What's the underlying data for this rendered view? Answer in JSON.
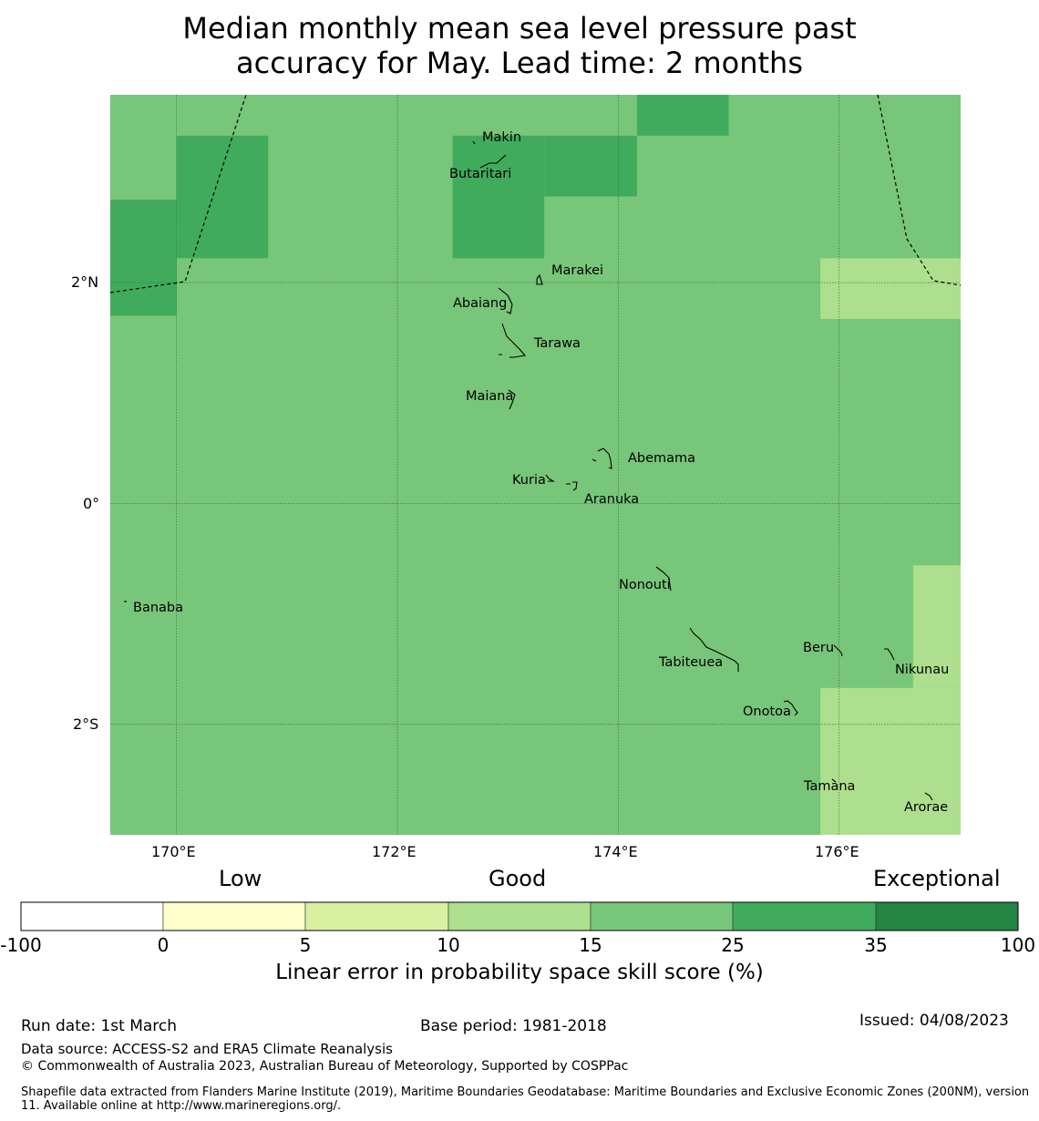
{
  "title": {
    "line1": "Median monthly mean sea level pressure past",
    "line2": "accuracy for May. Lead time: 2 months"
  },
  "map": {
    "lon_range": [
      169.4,
      177.1
    ],
    "lat_range": [
      -3.0,
      3.7
    ],
    "lon_ticks": [
      {
        "value": 170,
        "label": "170°E"
      },
      {
        "value": 172,
        "label": "172°E"
      },
      {
        "value": 174,
        "label": "174°E"
      },
      {
        "value": 176,
        "label": "176°E"
      }
    ],
    "lat_ticks": [
      {
        "value": 2,
        "label": "2°N"
      },
      {
        "value": 0,
        "label": "0°"
      },
      {
        "value": -2,
        "label": "2°S"
      }
    ],
    "colors": {
      "band_10_15": "#addf8e",
      "band_15_25": "#78c679",
      "band_25_35": "#41ab5d"
    },
    "cells": [
      {
        "lon": [
          169.4,
          170.0
        ],
        "lat": [
          2.75,
          3.7
        ],
        "band": "15-25"
      },
      {
        "lon": [
          169.4,
          170.0
        ],
        "lat": [
          1.7,
          2.75
        ],
        "band": "25-35"
      },
      {
        "lon": [
          170.0,
          170.83
        ],
        "lat": [
          2.22,
          3.33
        ],
        "band": "25-35"
      },
      {
        "lon": [
          172.5,
          173.33
        ],
        "lat": [
          2.22,
          3.33
        ],
        "band": "25-35"
      },
      {
        "lon": [
          173.33,
          174.17
        ],
        "lat": [
          2.78,
          3.33
        ],
        "band": "25-35"
      },
      {
        "lon": [
          174.17,
          175.0
        ],
        "lat": [
          3.33,
          3.7
        ],
        "band": "25-35"
      },
      {
        "lon": [
          175.83,
          177.1
        ],
        "lat": [
          1.67,
          2.22
        ],
        "band": "10-15"
      },
      {
        "lon": [
          176.67,
          177.1
        ],
        "lat": [
          -1.67,
          -0.56
        ],
        "band": "10-15"
      },
      {
        "lon": [
          175.83,
          177.1
        ],
        "lat": [
          -3.0,
          -1.67
        ],
        "band": "10-15"
      }
    ],
    "islands": [
      {
        "name": "Makin",
        "lon": 172.95,
        "lat": 3.33
      },
      {
        "name": "Butaritari",
        "lon": 172.75,
        "lat": 3.0
      },
      {
        "name": "Marakei",
        "lon": 173.47,
        "lat": 2.13
      },
      {
        "name": "Abaiang",
        "lon": 172.85,
        "lat": 1.83
      },
      {
        "name": "Tarawa",
        "lon": 173.23,
        "lat": 1.46
      },
      {
        "name": "Maiana",
        "lon": 172.97,
        "lat": 0.98
      },
      {
        "name": "Abemama",
        "lon": 174.25,
        "lat": 0.42
      },
      {
        "name": "Kuria",
        "lon": 173.4,
        "lat": 0.22
      },
      {
        "name": "Aranuka",
        "lon": 173.93,
        "lat": 0.04
      },
      {
        "name": "Nonouti",
        "lon": 174.25,
        "lat": -0.73
      },
      {
        "name": "Banaba",
        "lon": 169.84,
        "lat": -0.93
      },
      {
        "name": "Beru",
        "lon": 175.83,
        "lat": -1.31
      },
      {
        "name": "Tabiteuea",
        "lon": 174.7,
        "lat": -1.44
      },
      {
        "name": "Nikunau",
        "lon": 176.75,
        "lat": -1.5
      },
      {
        "name": "Onotoa",
        "lon": 175.38,
        "lat": -1.88
      },
      {
        "name": "Tamana",
        "lon": 175.94,
        "lat": -2.56
      },
      {
        "name": "Arorae",
        "lon": 176.8,
        "lat": -2.75
      }
    ]
  },
  "colorbar": {
    "categories": [
      "Low",
      "Good",
      "Exceptional"
    ],
    "ticks": [
      "-100",
      "0",
      "5",
      "10",
      "15",
      "25",
      "35",
      "100"
    ],
    "colors": [
      "#ffffff",
      "#ffffcc",
      "#d9f0a3",
      "#addf8e",
      "#78c679",
      "#41ab5d",
      "#238443"
    ],
    "label": "Linear error in probability space skill score (%)"
  },
  "footer": {
    "run_date": "Run date: 1st March",
    "base_period": "Base period: 1981-2018",
    "issued": "Issued: 04/08/2023",
    "data_source": "Data source: ACCESS-S2 and ERA5 Climate Reanalysis",
    "copyright": "© Commonwealth of Australia 2023, Australian Bureau of Meteorology, Supported by COSPPac",
    "shapefile": "Shapefile data extracted from Flanders Marine Institute (2019), Maritime Boundaries Geodatabase: Maritime Boundaries and Exclusive Economic Zones (200NM), version 11. Available online at http://www.marineregions.org/."
  }
}
